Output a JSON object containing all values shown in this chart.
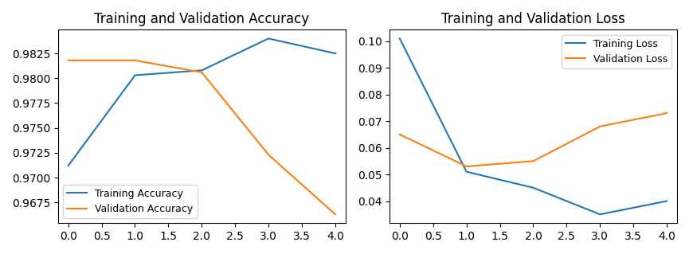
{
  "acc_title": "Training and Validation Accuracy",
  "loss_title": "Training and Validation Loss",
  "x": [
    0,
    1,
    2,
    3,
    4
  ],
  "train_acc": [
    0.9712,
    0.9803,
    0.9808,
    0.984,
    0.9825
  ],
  "val_acc": [
    0.9818,
    0.9818,
    0.9806,
    0.9723,
    0.9663
  ],
  "train_loss": [
    0.101,
    0.051,
    0.045,
    0.035,
    0.04
  ],
  "val_loss": [
    0.065,
    0.053,
    0.055,
    0.068,
    0.073
  ],
  "train_acc_label": "Training Accuracy",
  "val_acc_label": "Validation Accuracy",
  "train_loss_label": "Training Loss",
  "val_loss_label": "Validation Loss",
  "blue_color": "#1f77b4",
  "orange_color": "#ff7f0e",
  "acc_legend_loc": "lower left",
  "loss_legend_loc": "upper right",
  "xticks": [
    0.0,
    0.5,
    1.0,
    1.5,
    2.0,
    2.5,
    3.0,
    3.5,
    4.0
  ],
  "xlim": [
    -0.15,
    4.15
  ]
}
